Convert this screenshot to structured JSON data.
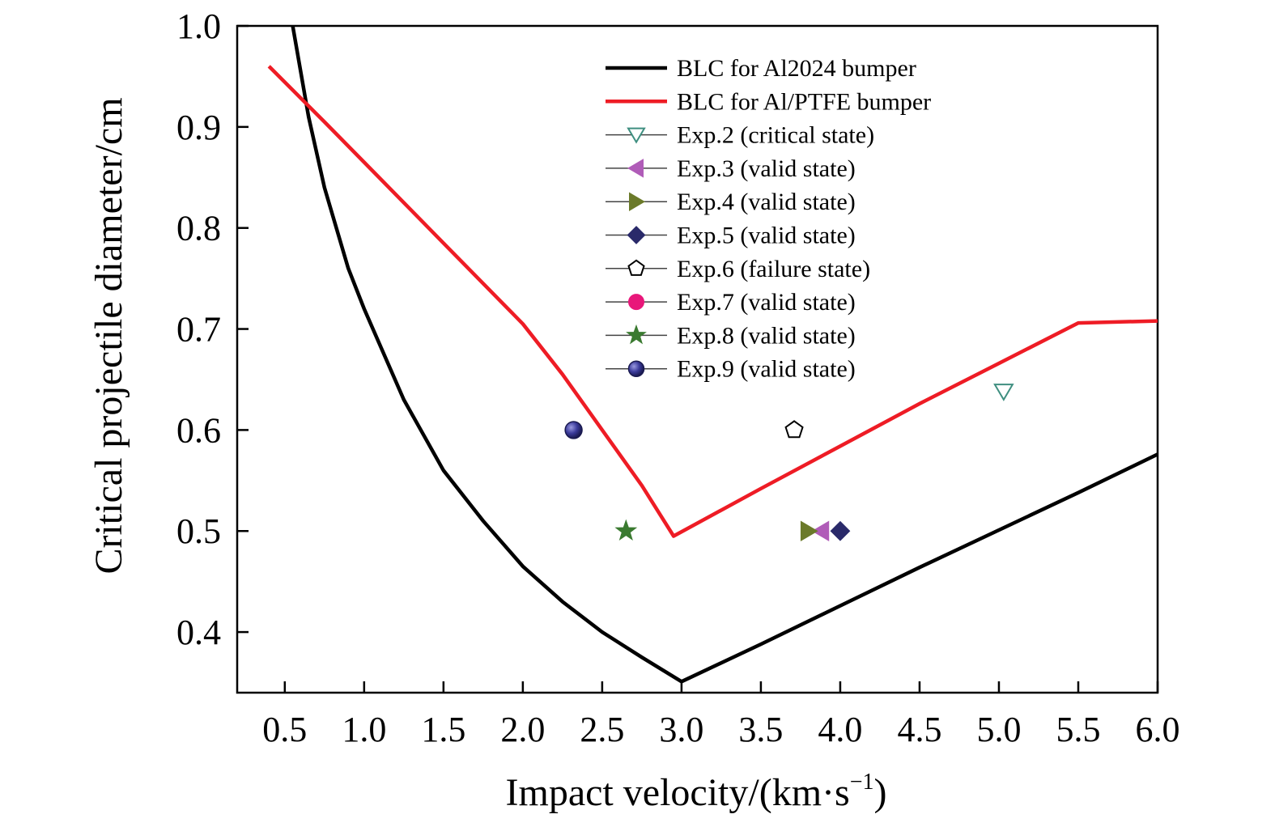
{
  "chart_data": {
    "type": "line",
    "title": "",
    "xlabel": "Impact velocity/(km·s",
    "xlabel_sup": "−1",
    "xlabel_close": ")",
    "ylabel": "Critical projectile diameter/cm",
    "xlim": [
      0.2,
      6.0
    ],
    "ylim": [
      0.34,
      1.0
    ],
    "x_ticks": [
      "0.5",
      "1.0",
      "1.5",
      "2.0",
      "2.5",
      "3.0",
      "3.5",
      "4.0",
      "4.5",
      "5.0",
      "5.5",
      "6.0"
    ],
    "y_ticks": [
      "0.4",
      "0.5",
      "0.6",
      "0.7",
      "0.8",
      "0.9",
      "1.0"
    ],
    "grid": false,
    "legend_position": "top-right",
    "series": [
      {
        "name": "BLC for Al2024 bumper",
        "kind": "line",
        "color": "#000000",
        "points": [
          [
            0.55,
            1.0
          ],
          [
            0.65,
            0.91
          ],
          [
            0.75,
            0.84
          ],
          [
            0.9,
            0.76
          ],
          [
            1.0,
            0.72
          ],
          [
            1.25,
            0.63
          ],
          [
            1.5,
            0.56
          ],
          [
            1.75,
            0.51
          ],
          [
            2.0,
            0.465
          ],
          [
            2.25,
            0.43
          ],
          [
            2.5,
            0.4
          ],
          [
            2.75,
            0.375
          ],
          [
            3.0,
            0.351
          ],
          [
            3.5,
            0.388
          ],
          [
            4.0,
            0.426
          ],
          [
            4.5,
            0.464
          ],
          [
            5.0,
            0.501
          ],
          [
            5.5,
            0.538
          ],
          [
            6.0,
            0.576
          ]
        ]
      },
      {
        "name": "BLC for Al/PTFE bumper",
        "kind": "line",
        "color": "#ee1c25",
        "points": [
          [
            0.4,
            0.96
          ],
          [
            0.75,
            0.905
          ],
          [
            1.0,
            0.865
          ],
          [
            1.5,
            0.785
          ],
          [
            2.0,
            0.705
          ],
          [
            2.25,
            0.655
          ],
          [
            2.5,
            0.6
          ],
          [
            2.75,
            0.545
          ],
          [
            2.95,
            0.495
          ],
          [
            3.5,
            0.542
          ],
          [
            4.0,
            0.584
          ],
          [
            4.5,
            0.626
          ],
          [
            5.0,
            0.666
          ],
          [
            5.5,
            0.706
          ],
          [
            6.0,
            0.708
          ]
        ]
      },
      {
        "name": "Exp.2 (critical state)",
        "kind": "marker",
        "marker": "triangle-down",
        "color": "#3f8f80",
        "fill": "#ffffff",
        "points": [
          [
            5.03,
            0.638
          ]
        ]
      },
      {
        "name": "Exp.3 (valid state)",
        "kind": "marker",
        "marker": "triangle-left",
        "color": "#b05cb8",
        "fill": "#b05cb8",
        "points": [
          [
            3.88,
            0.5
          ]
        ]
      },
      {
        "name": "Exp.4 (valid state)",
        "kind": "marker",
        "marker": "triangle-right",
        "color": "#6b7a2a",
        "fill": "#6b7a2a",
        "points": [
          [
            3.8,
            0.5
          ]
        ]
      },
      {
        "name": "Exp.5 (valid state)",
        "kind": "marker",
        "marker": "diamond",
        "color": "#2a2a6a",
        "fill": "#2a2a6a",
        "points": [
          [
            4.0,
            0.5
          ]
        ]
      },
      {
        "name": "Exp.6 (failure state)",
        "kind": "marker",
        "marker": "pentagon",
        "color": "#000000",
        "fill": "#ffffff",
        "points": [
          [
            3.71,
            0.6
          ]
        ]
      },
      {
        "name": "Exp.7 (valid state)",
        "kind": "marker",
        "marker": "circle",
        "color": "#e8177a",
        "fill": "#e8177a",
        "points": []
      },
      {
        "name": "Exp.8 (valid state)",
        "kind": "marker",
        "marker": "star",
        "color": "#3a7a30",
        "fill": "#3a7a30",
        "points": [
          [
            2.65,
            0.5
          ]
        ]
      },
      {
        "name": "Exp.9 (valid state)",
        "kind": "marker",
        "marker": "sphere",
        "color": "#2a2a80",
        "fill": "#3a3a9a",
        "points": [
          [
            2.32,
            0.6
          ]
        ]
      }
    ]
  }
}
